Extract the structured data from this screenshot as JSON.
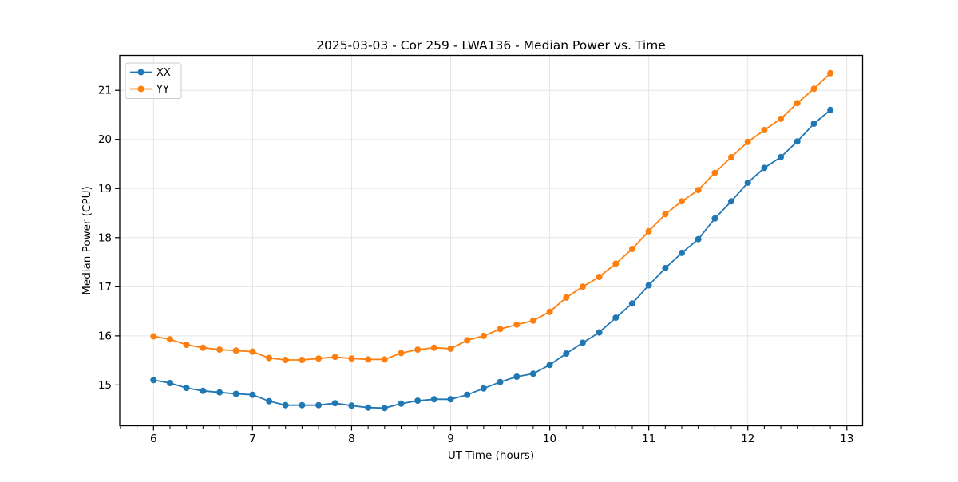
{
  "figure": {
    "background": "#ffffff"
  },
  "chart_data": {
    "type": "line",
    "title": "2025-03-03 - Cor 259 - LWA136 - Median Power vs. Time",
    "xlabel": "UT Time (hours)",
    "ylabel": "Median Power (CPU)",
    "xlim": [
      5.659,
      13.159
    ],
    "ylim": [
      14.17,
      21.71
    ],
    "x_ticks": [
      6,
      7,
      8,
      9,
      10,
      11,
      12,
      13
    ],
    "y_ticks": [
      15,
      16,
      17,
      18,
      19,
      20,
      21
    ],
    "x_minor_tick_step_hours": 0.166667,
    "grid": true,
    "legend": {
      "position": "upper left",
      "entries": [
        "XX",
        "YY"
      ]
    },
    "x": [
      6.0,
      6.167,
      6.333,
      6.5,
      6.667,
      6.833,
      7.0,
      7.167,
      7.333,
      7.5,
      7.667,
      7.833,
      8.0,
      8.167,
      8.333,
      8.5,
      8.667,
      8.833,
      9.0,
      9.167,
      9.333,
      9.5,
      9.667,
      9.833,
      10.0,
      10.167,
      10.333,
      10.5,
      10.667,
      10.833,
      11.0,
      11.167,
      11.333,
      11.5,
      11.667,
      11.833,
      12.0,
      12.167,
      12.333,
      12.5,
      12.667,
      12.833
    ],
    "series": [
      {
        "name": "XX",
        "color": "#1f77b4",
        "marker": "circle",
        "values": [
          15.1,
          15.04,
          14.94,
          14.88,
          14.85,
          14.82,
          14.8,
          14.67,
          14.59,
          14.59,
          14.59,
          14.63,
          14.58,
          14.54,
          14.53,
          14.62,
          14.68,
          14.71,
          14.71,
          14.8,
          14.93,
          15.06,
          15.17,
          15.23,
          15.41,
          15.64,
          15.86,
          16.07,
          16.37,
          16.66,
          17.03,
          17.38,
          17.69,
          17.97,
          18.39,
          18.74,
          19.12,
          19.42,
          19.64,
          19.96,
          20.32,
          20.6
        ]
      },
      {
        "name": "YY",
        "color": "#ff7f0e",
        "marker": "circle",
        "values": [
          15.99,
          15.93,
          15.82,
          15.76,
          15.72,
          15.7,
          15.68,
          15.55,
          15.51,
          15.51,
          15.54,
          15.57,
          15.54,
          15.52,
          15.52,
          15.65,
          15.72,
          15.76,
          15.74,
          15.91,
          16.0,
          16.14,
          16.23,
          16.31,
          16.49,
          16.78,
          17.0,
          17.2,
          17.47,
          17.77,
          18.13,
          18.48,
          18.74,
          18.97,
          19.32,
          19.64,
          19.95,
          20.19,
          20.42,
          20.74,
          21.03,
          21.35
        ]
      }
    ],
    "colors": {
      "grid": "#e5e5e5",
      "spine": "#000000",
      "tick": "#000000",
      "legend_border": "#cccccc",
      "legend_background": "#ffffff"
    }
  }
}
